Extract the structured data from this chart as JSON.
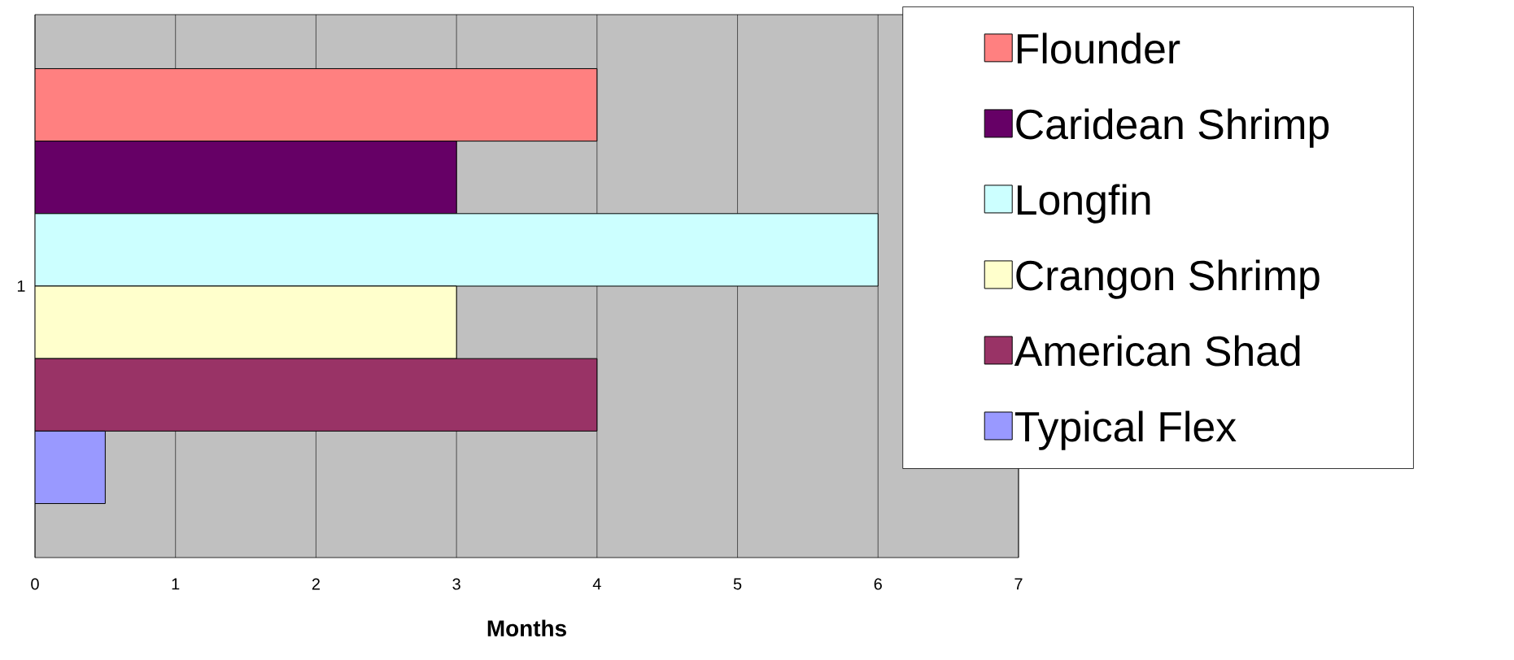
{
  "chart_data": {
    "type": "bar",
    "orientation": "horizontal",
    "xlabel": "Months",
    "categories": [
      "1"
    ],
    "series": [
      {
        "name": "Flounder",
        "color": "#ff8080",
        "values": [
          4
        ]
      },
      {
        "name": "Caridean Shrimp",
        "color": "#660066",
        "values": [
          3
        ]
      },
      {
        "name": "Longfin",
        "color": "#ccffff",
        "values": [
          6
        ]
      },
      {
        "name": "Crangon Shrimp",
        "color": "#ffffcc",
        "values": [
          3
        ]
      },
      {
        "name": "American Shad",
        "color": "#993366",
        "values": [
          4
        ]
      },
      {
        "name": "Typical Flex",
        "color": "#9999ff",
        "values": [
          0.5
        ]
      }
    ],
    "xlim": [
      0,
      7
    ],
    "xticks": [
      0,
      1,
      2,
      3,
      4,
      5,
      6,
      7
    ],
    "grid": "x",
    "legend": "right"
  }
}
